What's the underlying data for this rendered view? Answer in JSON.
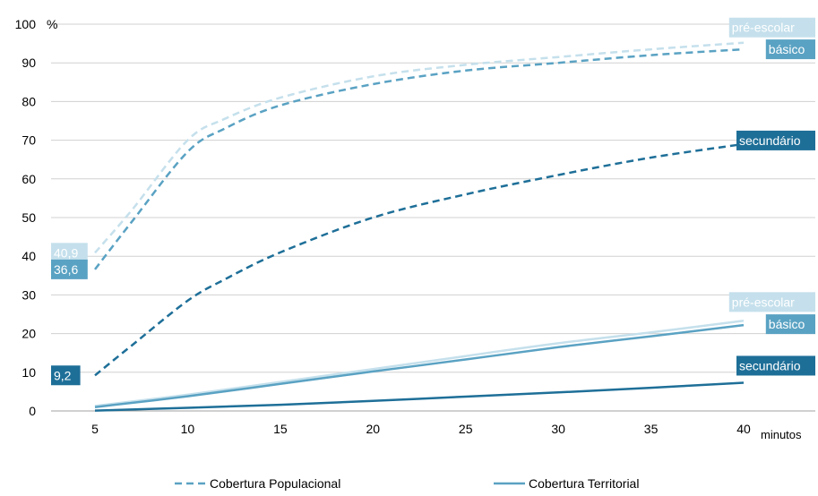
{
  "chart_data": {
    "type": "line",
    "ylabel_unit": "%",
    "xlabel": "minutos",
    "xlim": [
      5,
      40
    ],
    "ylim": [
      0,
      100
    ],
    "x_ticks": [
      5,
      10,
      15,
      20,
      25,
      30,
      35,
      40
    ],
    "y_ticks": [
      0,
      10,
      20,
      30,
      40,
      50,
      60,
      70,
      80,
      90,
      100
    ],
    "grid": true,
    "legend_position": "bottom",
    "legend": [
      {
        "label": "Cobertura Populacional",
        "style": "dashed",
        "color": "#5aa2c3"
      },
      {
        "label": "Cobertura Territorial",
        "style": "solid",
        "color": "#5aa2c3"
      }
    ],
    "series": [
      {
        "group": "populacional",
        "end_label": "pré-escolar",
        "start_label": "40,9",
        "color": "#c5e0ec",
        "dashed": true,
        "x": [
          5,
          7,
          10,
          12,
          15,
          20,
          25,
          30,
          35,
          40
        ],
        "y": [
          40.9,
          52,
          70,
          75.5,
          81,
          86.5,
          89.5,
          91.5,
          93.5,
          95.2
        ]
      },
      {
        "group": "populacional",
        "end_label": "básico",
        "start_label": "36,6",
        "color": "#5aa2c3",
        "dashed": true,
        "x": [
          5,
          7,
          10,
          12,
          15,
          20,
          25,
          30,
          35,
          40
        ],
        "y": [
          36.6,
          49,
          67,
          73,
          79,
          84.5,
          88,
          90,
          92,
          93.5
        ]
      },
      {
        "group": "populacional",
        "end_label": "secundário",
        "start_label": "9,2",
        "color": "#1e6f98",
        "dashed": true,
        "x": [
          5,
          7,
          10,
          12,
          15,
          20,
          25,
          30,
          35,
          40
        ],
        "y": [
          9.2,
          17,
          28.5,
          34,
          41,
          50,
          56,
          61,
          65.5,
          69
        ]
      },
      {
        "group": "territorial",
        "end_label": "pré-escolar",
        "color": "#c5e0ec",
        "dashed": false,
        "x": [
          5,
          10,
          15,
          20,
          25,
          30,
          35,
          40
        ],
        "y": [
          1.3,
          4.2,
          7.5,
          10.8,
          14.2,
          17.5,
          20.3,
          23.3
        ]
      },
      {
        "group": "territorial",
        "end_label": "básico",
        "color": "#5aa2c3",
        "dashed": false,
        "x": [
          5,
          10,
          15,
          20,
          25,
          30,
          35,
          40
        ],
        "y": [
          1.0,
          3.8,
          7.0,
          10.2,
          13.3,
          16.5,
          19.3,
          22.2
        ]
      },
      {
        "group": "territorial",
        "end_label": "secundário",
        "color": "#1e6f98",
        "dashed": false,
        "x": [
          5,
          10,
          15,
          20,
          25,
          30,
          35,
          40
        ],
        "y": [
          0.1,
          0.8,
          1.6,
          2.6,
          3.7,
          4.8,
          6.0,
          7.3
        ]
      }
    ]
  }
}
